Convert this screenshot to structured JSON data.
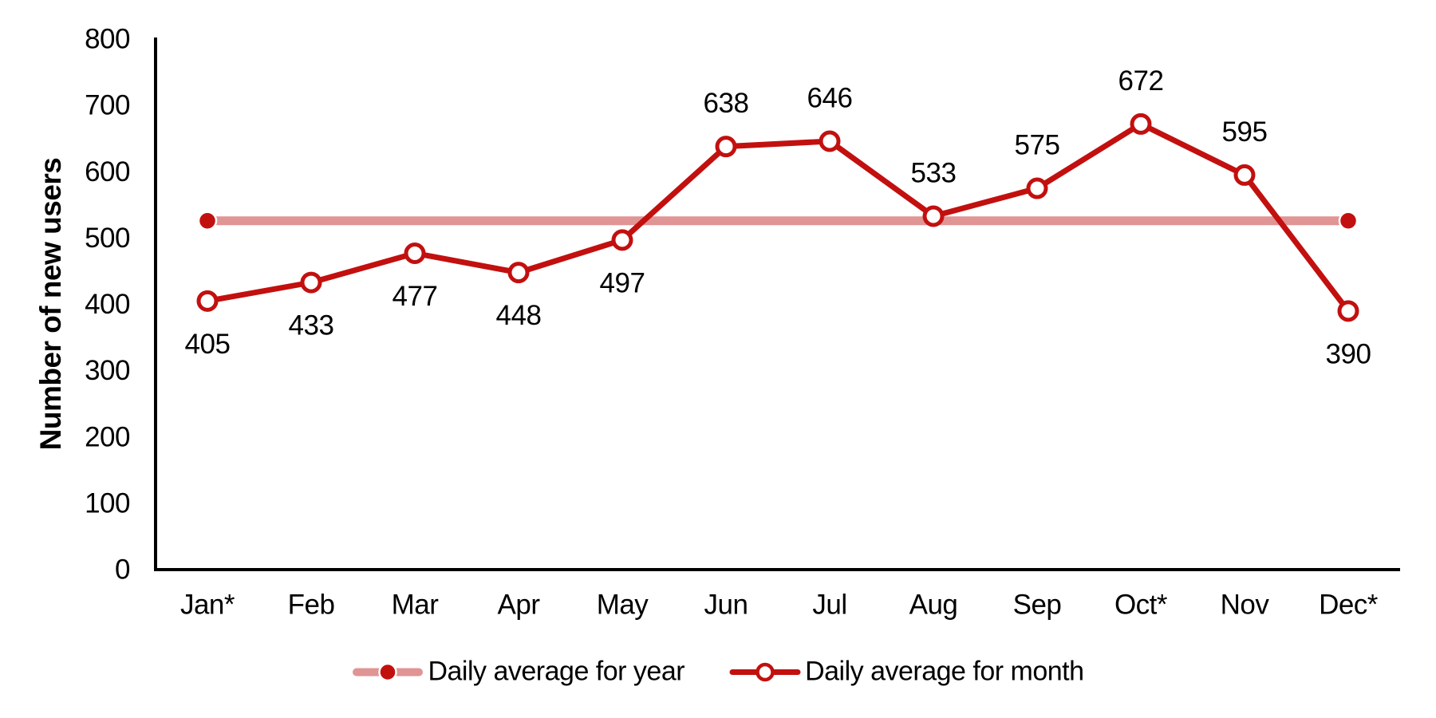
{
  "chart_data": {
    "type": "line",
    "title": "",
    "xlabel": "",
    "ylabel": "Number of new users",
    "categories": [
      "Jan*",
      "Feb",
      "Mar",
      "Apr",
      "May",
      "Jun",
      "Jul",
      "Aug",
      "Sep",
      "Oct*",
      "Nov",
      "Dec*"
    ],
    "series": [
      {
        "name": "Daily average for year",
        "type": "constant-line",
        "value": 526,
        "from_category": "Jan*",
        "to_category": "Dec*",
        "line_color": "#e09494",
        "marker": "filled-circle",
        "marker_color": "#c2100f"
      },
      {
        "name": "Daily average for month",
        "type": "line",
        "values": [
          405,
          433,
          477,
          448,
          497,
          638,
          646,
          533,
          575,
          672,
          595,
          390
        ],
        "line_color": "#c2100f",
        "marker": "open-circle",
        "marker_fill": "#ffffff",
        "data_label_positions": [
          "below",
          "below",
          "below",
          "below",
          "below",
          "above",
          "above",
          "above",
          "above",
          "above",
          "above",
          "below"
        ]
      }
    ],
    "ylim": [
      0,
      800
    ],
    "yticks": [
      0,
      100,
      200,
      300,
      400,
      500,
      600,
      700,
      800
    ],
    "grid": false,
    "legend_position": "bottom",
    "axis_color": "#000000",
    "text_color": "#000000"
  }
}
